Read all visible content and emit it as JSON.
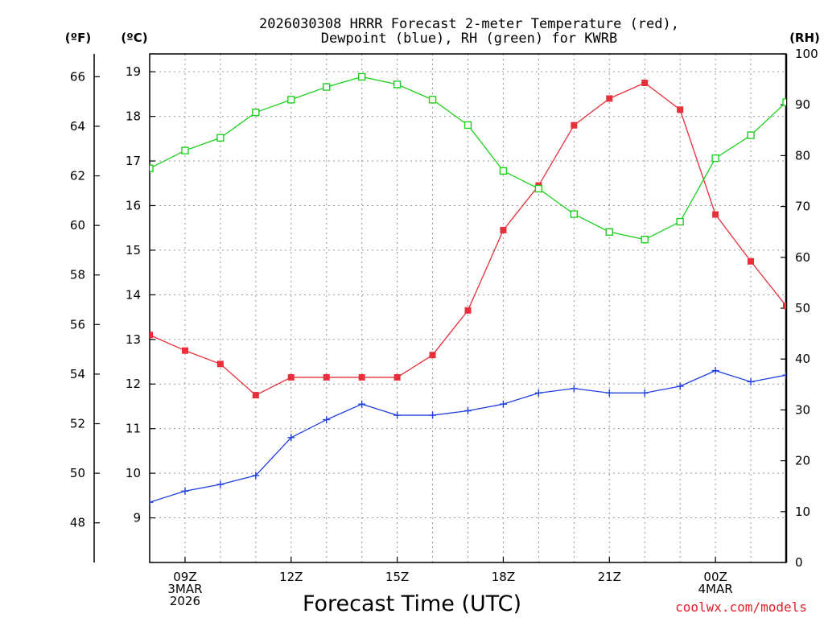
{
  "chart_data": {
    "type": "line",
    "title_line1": "2026030308 HRRR Forecast 2-meter Temperature (red),",
    "title_line2": "Dewpoint (blue), RH (green) for KWRB",
    "xlabel": "Forecast Time (UTC)",
    "credit": "coolwx.com/models",
    "units": {
      "left_f": "(ºF)",
      "left_c": "(ºC)",
      "right_rh": "(RH)"
    },
    "x_hours": [
      8,
      9,
      10,
      11,
      12,
      13,
      14,
      15,
      16,
      17,
      18,
      19,
      20,
      21,
      22,
      23,
      24,
      25,
      26
    ],
    "xlim": [
      8,
      26
    ],
    "x_ticks": [
      {
        "hour": 9,
        "lines": [
          "09Z",
          "3MAR",
          "2026"
        ]
      },
      {
        "hour": 12,
        "lines": [
          "12Z"
        ]
      },
      {
        "hour": 15,
        "lines": [
          "15Z"
        ]
      },
      {
        "hour": 18,
        "lines": [
          "18Z"
        ]
      },
      {
        "hour": 21,
        "lines": [
          "21Z"
        ]
      },
      {
        "hour": 24,
        "lines": [
          "00Z",
          "4MAR"
        ]
      }
    ],
    "c_axis": {
      "ylim": [
        8.0,
        19.4
      ],
      "ticks": [
        9,
        10,
        11,
        12,
        13,
        14,
        15,
        16,
        17,
        18,
        19
      ]
    },
    "f_axis": {
      "ticks": [
        48,
        50,
        52,
        54,
        56,
        58,
        60,
        62,
        64,
        66
      ]
    },
    "rh_axis": {
      "ylim": [
        0,
        100
      ],
      "ticks": [
        0,
        10,
        20,
        30,
        40,
        50,
        60,
        70,
        80,
        90,
        100
      ]
    },
    "series": [
      {
        "name": "Temperature",
        "units": "C",
        "color": "#e8303a",
        "marker": "filled-square",
        "values": [
          13.1,
          12.75,
          12.45,
          11.75,
          12.15,
          12.15,
          12.15,
          12.15,
          12.65,
          13.65,
          15.45,
          16.45,
          17.8,
          18.4,
          18.75,
          18.15,
          15.8,
          14.75,
          13.75
        ]
      },
      {
        "name": "Dewpoint",
        "units": "C",
        "color": "#2040e0",
        "marker": "plus",
        "values": [
          9.35,
          9.6,
          9.75,
          9.95,
          10.8,
          11.2,
          11.55,
          11.3,
          11.3,
          11.4,
          11.55,
          11.8,
          11.9,
          11.8,
          11.8,
          11.95,
          12.3,
          12.05,
          12.2
        ]
      },
      {
        "name": "RH",
        "units": "%",
        "color": "#1ed01e",
        "marker": "open-square",
        "values": [
          77.5,
          81,
          83.5,
          88.5,
          91,
          93.5,
          95.5,
          94,
          91,
          86,
          77,
          73.5,
          68.5,
          65,
          63.5,
          67,
          79.5,
          84,
          90.5
        ]
      }
    ]
  }
}
